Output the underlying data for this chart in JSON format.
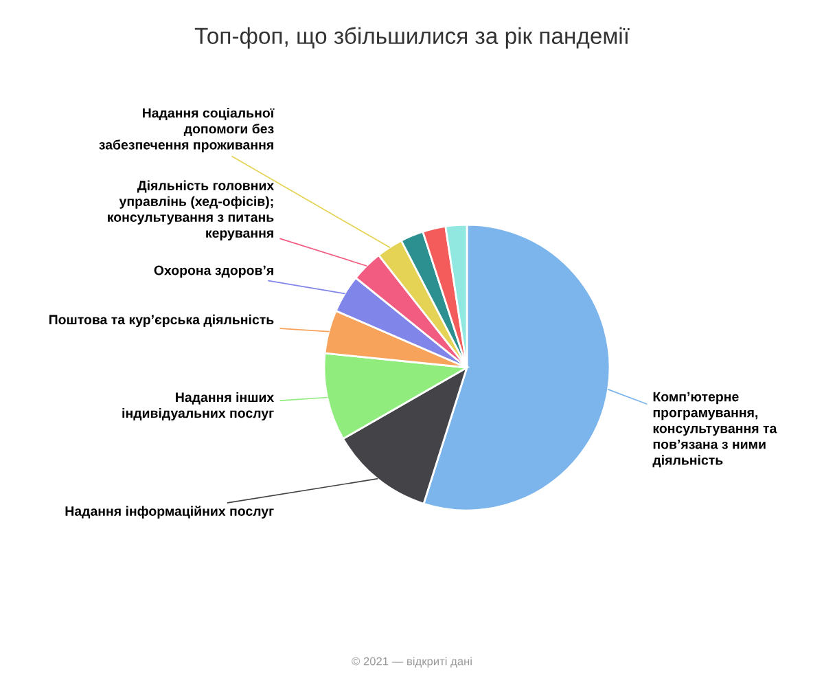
{
  "chart_data": {
    "type": "pie",
    "title": "Топ-фоп, що збільшилися за рік пандемії",
    "categories": [
      "Комп’ютерне\nпрограмування,\nконсультування та\nпов’язана з ними\nдіяльність",
      "Надання інформаційних послуг",
      "Надання інших\nіндивідуальних послуг",
      "Поштова та кур’єрська діяльність",
      "Охорона здоров’я",
      "Діяльність головних\nуправлінь (хед-офісів);\nконсультування з питань\nкерування",
      "Надання соціальної\nдопомоги без\nзабезпечення проживання",
      null,
      null,
      null
    ],
    "values": [
      54.9,
      11.8,
      9.9,
      4.9,
      4.3,
      3.6,
      3.0,
      2.6,
      2.6,
      2.4
    ],
    "colors": [
      "#7cb5ec",
      "#434348",
      "#90ed7d",
      "#f7a35c",
      "#8085e9",
      "#f15c80",
      "#e4d354",
      "#2b908f",
      "#f45b5b",
      "#91e8e1"
    ],
    "legend": false,
    "annotations": [
      "© 2021 — відкриті дані"
    ]
  }
}
